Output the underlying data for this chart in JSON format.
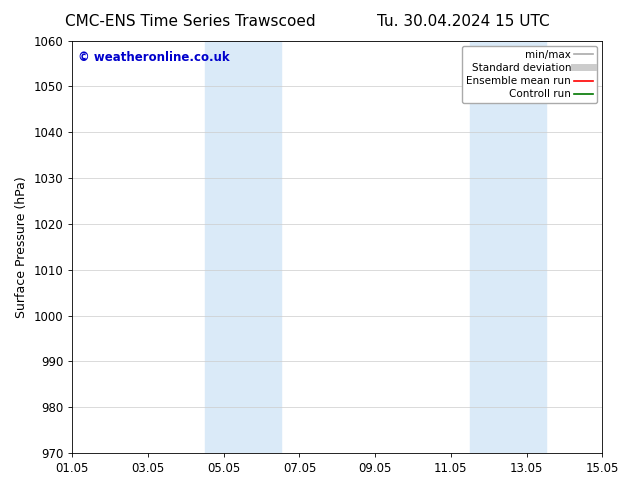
{
  "title_left": "CMC-ENS Time Series Trawscoed",
  "title_right": "Tu. 30.04.2024 15 UTC",
  "ylabel": "Surface Pressure (hPa)",
  "ylim": [
    970,
    1060
  ],
  "yticks": [
    970,
    980,
    990,
    1000,
    1010,
    1020,
    1030,
    1040,
    1050,
    1060
  ],
  "xtick_labels": [
    "01.05",
    "03.05",
    "05.05",
    "07.05",
    "09.05",
    "11.05",
    "13.05",
    "15.05"
  ],
  "xtick_positions": [
    0,
    2,
    4,
    6,
    8,
    10,
    12,
    14
  ],
  "xlim": [
    0,
    14
  ],
  "shaded_bands": [
    {
      "x_start": 3.5,
      "x_end": 4.5,
      "color": "#daeaf8"
    },
    {
      "x_start": 4.5,
      "x_end": 5.5,
      "color": "#daeaf8"
    },
    {
      "x_start": 10.5,
      "x_end": 11.5,
      "color": "#daeaf8"
    },
    {
      "x_start": 11.5,
      "x_end": 12.5,
      "color": "#daeaf8"
    }
  ],
  "watermark_text": "© weatheronline.co.uk",
  "watermark_color": "#0000cc",
  "legend_entries": [
    {
      "label": "min/max",
      "color": "#aaaaaa",
      "lw": 1.2,
      "style": "solid"
    },
    {
      "label": "Standard deviation",
      "color": "#cccccc",
      "lw": 5,
      "style": "solid"
    },
    {
      "label": "Ensemble mean run",
      "color": "#ff0000",
      "lw": 1.2,
      "style": "solid"
    },
    {
      "label": "Controll run",
      "color": "#007700",
      "lw": 1.2,
      "style": "solid"
    }
  ],
  "bg_color": "#ffffff",
  "grid_color": "#cccccc",
  "title_fontsize": 11,
  "axis_fontsize": 9,
  "tick_fontsize": 8.5,
  "legend_fontsize": 7.5
}
